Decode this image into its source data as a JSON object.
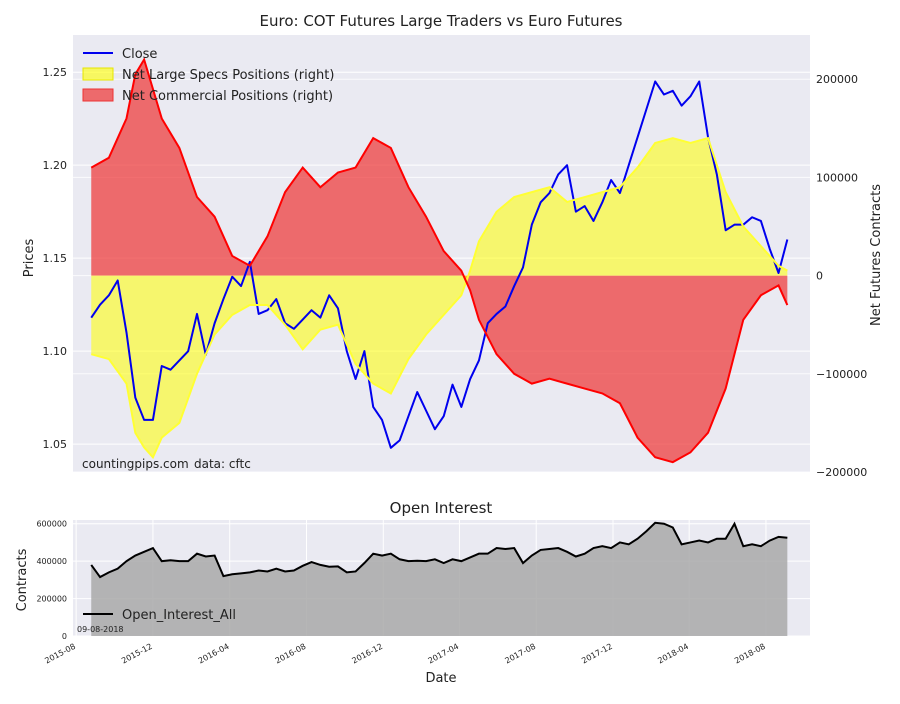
{
  "chart_data": [
    {
      "type": "line",
      "title": "Euro: COT Futures Large Traders vs Euro Futures",
      "ylabel": "Prices",
      "y2label": "Net Futures Contracts",
      "ylim": [
        1.035,
        1.27
      ],
      "y2lim": [
        -200000,
        245000
      ],
      "yticks": [
        "1.05",
        "1.10",
        "1.15",
        "1.20",
        "1.25"
      ],
      "y2ticks": [
        "−200000",
        "−100000",
        "0",
        "100000",
        "200000"
      ],
      "legend_position": "top-left",
      "watermark": "countingpips.com",
      "source": "data: cftc",
      "colors": {
        "close": "#0000ee",
        "specs": "#ffff00",
        "specs_line": "#ffff33",
        "comm": "#ee3333",
        "comm_line": "#ff0000",
        "overlap": "#808080"
      },
      "series": [
        {
          "name": "Close",
          "axis": "left",
          "x": [
            "2015-08-25",
            "2015-09-08",
            "2015-09-22",
            "2015-10-06",
            "2015-10-20",
            "2015-11-03",
            "2015-11-17",
            "2015-12-01",
            "2015-12-15",
            "2015-12-29",
            "2016-01-12",
            "2016-01-26",
            "2016-02-09",
            "2016-02-23",
            "2016-03-08",
            "2016-03-22",
            "2016-04-05",
            "2016-04-19",
            "2016-05-03",
            "2016-05-17",
            "2016-05-31",
            "2016-06-14",
            "2016-06-28",
            "2016-07-12",
            "2016-07-26",
            "2016-08-09",
            "2016-08-23",
            "2016-09-06",
            "2016-09-20",
            "2016-10-04",
            "2016-10-18",
            "2016-11-01",
            "2016-11-15",
            "2016-11-29",
            "2016-12-13",
            "2016-12-27",
            "2017-01-10",
            "2017-01-24",
            "2017-02-07",
            "2017-02-21",
            "2017-03-07",
            "2017-03-21",
            "2017-04-04",
            "2017-04-18",
            "2017-05-02",
            "2017-05-16",
            "2017-05-30",
            "2017-06-13",
            "2017-06-27",
            "2017-07-11",
            "2017-07-25",
            "2017-08-08",
            "2017-08-22",
            "2017-09-05",
            "2017-09-19",
            "2017-10-03",
            "2017-10-17",
            "2017-10-31",
            "2017-11-14",
            "2017-11-28",
            "2017-12-12",
            "2017-12-26",
            "2018-01-09",
            "2018-01-23",
            "2018-02-06",
            "2018-02-20",
            "2018-03-06",
            "2018-03-20",
            "2018-04-03",
            "2018-04-17",
            "2018-05-01",
            "2018-05-15",
            "2018-05-29",
            "2018-06-12",
            "2018-06-26",
            "2018-07-10",
            "2018-07-24",
            "2018-08-07",
            "2018-08-21",
            "2018-09-04"
          ],
          "values": [
            1.118,
            1.125,
            1.13,
            1.138,
            1.11,
            1.075,
            1.063,
            1.063,
            1.092,
            1.09,
            1.095,
            1.1,
            1.12,
            1.098,
            1.115,
            1.128,
            1.14,
            1.135,
            1.148,
            1.12,
            1.122,
            1.128,
            1.115,
            1.112,
            1.117,
            1.122,
            1.118,
            1.13,
            1.123,
            1.1,
            1.085,
            1.1,
            1.07,
            1.063,
            1.048,
            1.052,
            1.065,
            1.078,
            1.068,
            1.058,
            1.065,
            1.082,
            1.07,
            1.085,
            1.095,
            1.115,
            1.12,
            1.124,
            1.135,
            1.145,
            1.168,
            1.18,
            1.185,
            1.195,
            1.2,
            1.175,
            1.178,
            1.17,
            1.18,
            1.192,
            1.185,
            1.2,
            1.215,
            1.23,
            1.245,
            1.238,
            1.24,
            1.232,
            1.237,
            1.245,
            1.215,
            1.195,
            1.165,
            1.168,
            1.168,
            1.172,
            1.17,
            1.155,
            1.142,
            1.16
          ]
        },
        {
          "name": "Net Large Specs Positions (right)",
          "axis": "right",
          "x": [
            "2015-08-25",
            "2015-09-22",
            "2015-10-20",
            "2015-11-03",
            "2015-11-17",
            "2015-12-01",
            "2015-12-15",
            "2016-01-12",
            "2016-02-09",
            "2016-03-08",
            "2016-04-05",
            "2016-05-03",
            "2016-05-31",
            "2016-06-28",
            "2016-07-26",
            "2016-08-23",
            "2016-09-20",
            "2016-10-18",
            "2016-11-15",
            "2016-12-13",
            "2017-01-10",
            "2017-02-07",
            "2017-03-07",
            "2017-04-04",
            "2017-04-18",
            "2017-05-02",
            "2017-05-30",
            "2017-06-27",
            "2017-07-25",
            "2017-08-22",
            "2017-09-19",
            "2017-10-17",
            "2017-11-14",
            "2017-12-12",
            "2018-01-09",
            "2018-02-06",
            "2018-03-06",
            "2018-04-03",
            "2018-05-01",
            "2018-05-29",
            "2018-06-26",
            "2018-07-24",
            "2018-08-21",
            "2018-09-04"
          ],
          "values": [
            -80000,
            -85000,
            -110000,
            -160000,
            -175000,
            -185000,
            -165000,
            -150000,
            -100000,
            -60000,
            -40000,
            -30000,
            -30000,
            -50000,
            -75000,
            -55000,
            -50000,
            -90000,
            -110000,
            -120000,
            -85000,
            -60000,
            -40000,
            -20000,
            5000,
            35000,
            65000,
            80000,
            85000,
            90000,
            75000,
            80000,
            85000,
            90000,
            110000,
            135000,
            140000,
            135000,
            140000,
            85000,
            50000,
            30000,
            10000,
            5000
          ]
        },
        {
          "name": "Net Commercial Positions (right)",
          "axis": "right",
          "x": [
            "2015-08-25",
            "2015-09-22",
            "2015-10-20",
            "2015-11-03",
            "2015-11-17",
            "2015-12-01",
            "2015-12-15",
            "2016-01-12",
            "2016-02-09",
            "2016-03-08",
            "2016-04-05",
            "2016-05-03",
            "2016-05-31",
            "2016-06-28",
            "2016-07-26",
            "2016-08-23",
            "2016-09-20",
            "2016-10-18",
            "2016-11-15",
            "2016-12-13",
            "2017-01-10",
            "2017-02-07",
            "2017-03-07",
            "2017-04-04",
            "2017-04-18",
            "2017-05-02",
            "2017-05-30",
            "2017-06-27",
            "2017-07-25",
            "2017-08-22",
            "2017-09-19",
            "2017-10-17",
            "2017-11-14",
            "2017-12-12",
            "2018-01-09",
            "2018-02-06",
            "2018-03-06",
            "2018-04-03",
            "2018-05-01",
            "2018-05-29",
            "2018-06-26",
            "2018-07-24",
            "2018-08-21",
            "2018-09-04"
          ],
          "values": [
            110000,
            120000,
            160000,
            205000,
            220000,
            190000,
            160000,
            130000,
            80000,
            60000,
            20000,
            10000,
            40000,
            85000,
            110000,
            90000,
            105000,
            110000,
            140000,
            130000,
            90000,
            60000,
            25000,
            5000,
            -15000,
            -45000,
            -80000,
            -100000,
            -110000,
            -105000,
            -110000,
            -115000,
            -120000,
            -130000,
            -165000,
            -185000,
            -190000,
            -180000,
            -160000,
            -115000,
            -45000,
            -20000,
            -10000,
            -30000
          ]
        }
      ]
    },
    {
      "type": "area",
      "title": "Open Interest",
      "xlabel": "Date",
      "ylabel": "Contracts",
      "ylim": [
        0,
        620000
      ],
      "yticks": [
        "0",
        "200000",
        "400000",
        "600000"
      ],
      "xticks": [
        "2015-08",
        "2015-12",
        "2016-04",
        "2016-08",
        "2016-12",
        "2017-04",
        "2017-08",
        "2017-12",
        "2018-04",
        "2018-08"
      ],
      "annotation": "09-08-2018",
      "legend_position": "bottom-left",
      "colors": {
        "line": "#000000",
        "fill": "#a9a9a9"
      },
      "series": [
        {
          "name": "Open_Interest_All",
          "x": [
            "2015-08-25",
            "2015-09-08",
            "2015-09-22",
            "2015-10-06",
            "2015-10-20",
            "2015-11-03",
            "2015-11-17",
            "2015-12-01",
            "2015-12-15",
            "2015-12-29",
            "2016-01-12",
            "2016-01-26",
            "2016-02-09",
            "2016-02-23",
            "2016-03-08",
            "2016-03-22",
            "2016-04-05",
            "2016-04-19",
            "2016-05-03",
            "2016-05-17",
            "2016-05-31",
            "2016-06-14",
            "2016-06-28",
            "2016-07-12",
            "2016-07-26",
            "2016-08-09",
            "2016-08-23",
            "2016-09-06",
            "2016-09-20",
            "2016-10-04",
            "2016-10-18",
            "2016-11-01",
            "2016-11-15",
            "2016-11-29",
            "2016-12-13",
            "2016-12-27",
            "2017-01-10",
            "2017-01-24",
            "2017-02-07",
            "2017-02-21",
            "2017-03-07",
            "2017-03-21",
            "2017-04-04",
            "2017-04-18",
            "2017-05-02",
            "2017-05-16",
            "2017-05-30",
            "2017-06-13",
            "2017-06-27",
            "2017-07-11",
            "2017-07-25",
            "2017-08-08",
            "2017-08-22",
            "2017-09-05",
            "2017-09-19",
            "2017-10-03",
            "2017-10-17",
            "2017-10-31",
            "2017-11-14",
            "2017-11-28",
            "2017-12-12",
            "2017-12-26",
            "2018-01-09",
            "2018-01-23",
            "2018-02-06",
            "2018-02-20",
            "2018-03-06",
            "2018-03-20",
            "2018-04-03",
            "2018-04-17",
            "2018-05-01",
            "2018-05-15",
            "2018-05-29",
            "2018-06-12",
            "2018-06-26",
            "2018-07-10",
            "2018-07-24",
            "2018-08-07",
            "2018-08-21",
            "2018-09-04"
          ],
          "values": [
            380000,
            315000,
            340000,
            360000,
            400000,
            430000,
            450000,
            470000,
            400000,
            405000,
            400000,
            400000,
            440000,
            425000,
            430000,
            320000,
            330000,
            335000,
            340000,
            350000,
            345000,
            360000,
            345000,
            350000,
            375000,
            395000,
            380000,
            370000,
            372000,
            340000,
            345000,
            390000,
            440000,
            430000,
            440000,
            410000,
            400000,
            402000,
            400000,
            410000,
            390000,
            410000,
            400000,
            420000,
            440000,
            440000,
            470000,
            465000,
            470000,
            390000,
            430000,
            460000,
            465000,
            470000,
            450000,
            425000,
            440000,
            470000,
            480000,
            470000,
            500000,
            490000,
            520000,
            560000,
            605000,
            600000,
            580000,
            490000,
            500000,
            510000,
            500000,
            520000,
            520000,
            600000,
            480000,
            490000,
            480000,
            510000,
            530000,
            525000
          ]
        }
      ]
    }
  ]
}
